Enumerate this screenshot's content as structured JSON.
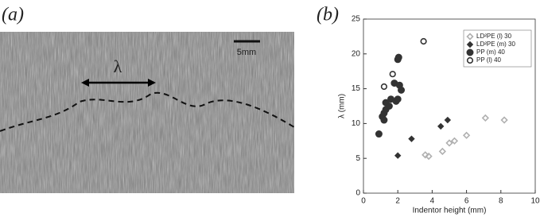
{
  "panel_a": {
    "label": "(a)",
    "scale_bar": "5mm",
    "symbol": "λ"
  },
  "chart_data": {
    "type": "scatter",
    "panel_label": "(b)",
    "xlabel": "Indentor height (mm)",
    "ylabel": "λ (mm)",
    "xlim": [
      0,
      10
    ],
    "ylim": [
      0,
      25
    ],
    "xticks": [
      0,
      2,
      4,
      6,
      8,
      10
    ],
    "yticks": [
      0,
      5,
      10,
      15,
      20,
      25
    ],
    "legend": "upper right",
    "series": [
      {
        "name": "LD²PE (l) 30",
        "color": "#b0b0b0",
        "marker": "diamond-open",
        "x": [
          3.6,
          3.8,
          4.6,
          5.0,
          5.3,
          6.0,
          7.1,
          8.2
        ],
        "values": [
          5.5,
          5.3,
          6.0,
          7.2,
          7.5,
          8.3,
          10.8,
          10.5
        ]
      },
      {
        "name": "LD²PE (m) 30",
        "color": "#333333",
        "marker": "diamond",
        "x": [
          2.0,
          2.8,
          4.5,
          4.9
        ],
        "values": [
          5.4,
          7.8,
          9.6,
          10.5
        ]
      },
      {
        "name": "PP (m) 40",
        "color": "#333333",
        "marker": "circle",
        "x": [
          0.9,
          1.1,
          1.2,
          1.2,
          1.3,
          1.3,
          1.5,
          1.6,
          1.8,
          1.9,
          2.0,
          2.0,
          2.05,
          2.1,
          2.2
        ],
        "values": [
          8.5,
          11.0,
          10.5,
          11.5,
          12.0,
          13.0,
          12.5,
          13.5,
          15.8,
          13.2,
          13.5,
          19.2,
          19.5,
          15.5,
          14.8
        ]
      },
      {
        "name": "PP (l) 40",
        "color": "#333333",
        "marker": "circle-open",
        "x": [
          1.2,
          1.7,
          3.5
        ],
        "values": [
          15.3,
          17.1,
          21.8
        ]
      }
    ]
  }
}
